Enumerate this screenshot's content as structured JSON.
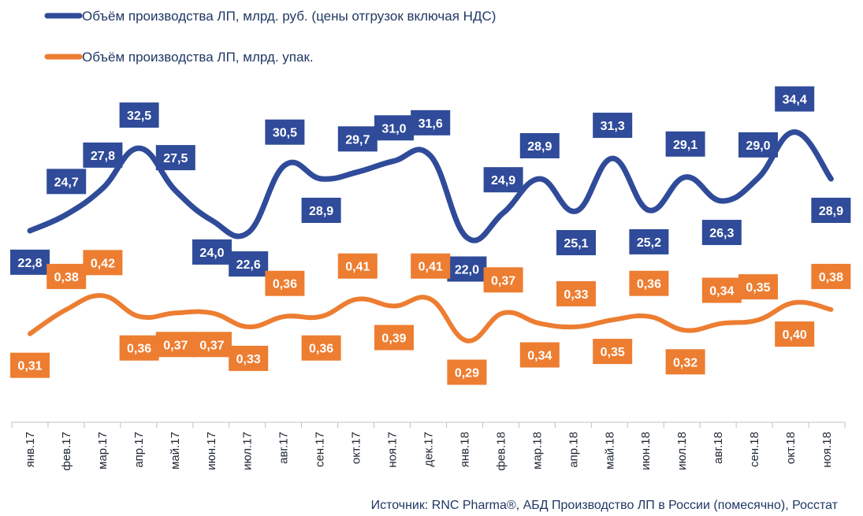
{
  "chart_data": {
    "type": "line",
    "categories": [
      "янв.17",
      "фев.17",
      "мар.17",
      "апр.17",
      "май.17",
      "июн.17",
      "июл.17",
      "авг.17",
      "сен.17",
      "окт.17",
      "ноя.17",
      "дек.17",
      "янв.18",
      "фев.18",
      "мар.18",
      "апр.18",
      "май.18",
      "июн.18",
      "июл.18",
      "авг.18",
      "сен.18",
      "окт.18",
      "ноя.18"
    ],
    "series": [
      {
        "name": "Объём производства ЛП, млрд. руб. (цены отгрузок включая НДС)",
        "color": "#2F4B99",
        "values": [
          22.8,
          24.7,
          27.8,
          32.5,
          27.5,
          24.0,
          22.6,
          30.5,
          28.9,
          29.7,
          31.0,
          31.6,
          22.0,
          24.9,
          28.9,
          25.1,
          31.3,
          25.2,
          29.1,
          26.3,
          29.0,
          34.4,
          28.9
        ],
        "labels": [
          "22,8",
          "24,7",
          "27,8",
          "32,5",
          "27,5",
          "24,0",
          "22,6",
          "30,5",
          "28,9",
          "29,7",
          "31,0",
          "31,6",
          "22,0",
          "24,9",
          "28,9",
          "25,1",
          "31,3",
          "25,2",
          "29,1",
          "26,3",
          "29,0",
          "34,4",
          "28,9"
        ]
      },
      {
        "name": "Объём производства ЛП, млрд. упак.",
        "color": "#ED7D31",
        "values": [
          0.31,
          0.38,
          0.42,
          0.36,
          0.37,
          0.37,
          0.33,
          0.36,
          0.36,
          0.41,
          0.39,
          0.41,
          0.29,
          0.37,
          0.34,
          0.33,
          0.35,
          0.36,
          0.32,
          0.34,
          0.35,
          0.4,
          0.38
        ],
        "labels": [
          "0,31",
          "0,38",
          "0,42",
          "0,36",
          "0,37",
          "0,37",
          "0,33",
          "0,36",
          "0,36",
          "0,41",
          "0,39",
          "0,41",
          "0,29",
          "0,37",
          "0,34",
          "0,33",
          "0,35",
          "0,36",
          "0,32",
          "0,34",
          "0,35",
          "0,40",
          "0,38"
        ]
      }
    ],
    "grid": false,
    "legend_position": "top-left"
  },
  "legend": [
    {
      "text": "Объём производства ЛП, млрд. руб. (цены отгрузок включая НДС)",
      "color": "#2F4B99"
    },
    {
      "text": "Объём производства ЛП, млрд. упак.",
      "color": "#ED7D31"
    }
  ],
  "source": "Источник: RNC Pharma®, АБД Производство ЛП в России (помесячно), Росстат",
  "label_text_color": "#ffffff"
}
